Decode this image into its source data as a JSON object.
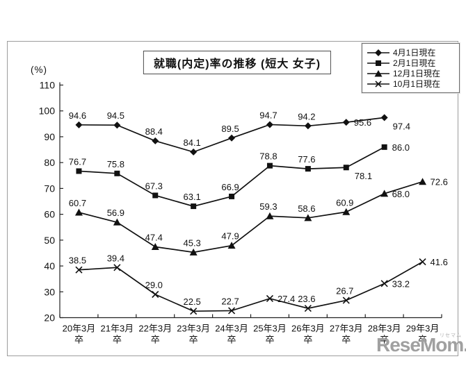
{
  "watermark": {
    "logo_text": "ReseMom.",
    "kana": "リセマム"
  },
  "chart_data": {
    "type": "line",
    "title": "就職(内定)率の推移 (短大 女子)",
    "y_axis": {
      "unit_label": "(%)",
      "min": 20,
      "max": 110,
      "tick_step": 10,
      "tick_labels": [
        "110",
        "100",
        "90",
        "80",
        "70",
        "60",
        "50",
        "40",
        "30",
        "20"
      ]
    },
    "categories": [
      "20年3月",
      "21年3月",
      "22年3月",
      "23年3月",
      "24年3月",
      "25年3月",
      "26年3月",
      "27年3月",
      "28年3月",
      "29年3月"
    ],
    "category_suffix": "卒",
    "grid": "off",
    "legend_position": "top-right",
    "line_color": "#111111",
    "axis_color": "#222222",
    "series": [
      {
        "name": "4月1日現在",
        "marker": "diamond",
        "values": [
          94.6,
          94.5,
          88.4,
          84.1,
          89.5,
          94.7,
          94.2,
          95.6,
          97.4,
          null
        ],
        "label_pos": [
          "a",
          "a",
          "a",
          "a",
          "a",
          "a",
          "a",
          "r",
          "br",
          null
        ]
      },
      {
        "name": "2月1日現在",
        "marker": "square",
        "values": [
          76.7,
          75.8,
          67.3,
          63.1,
          66.9,
          78.8,
          77.6,
          78.1,
          86.0,
          null
        ],
        "label_pos": [
          "a",
          "a",
          "a",
          "a",
          "a",
          "a",
          "a",
          "br",
          "r",
          null
        ]
      },
      {
        "name": "12月1日現在",
        "marker": "triangle",
        "values": [
          60.7,
          56.9,
          47.4,
          45.3,
          47.9,
          59.3,
          58.6,
          60.9,
          68.0,
          72.6
        ],
        "label_pos": [
          "a",
          "a",
          "a",
          "a",
          "a",
          "a",
          "a",
          "a",
          "r",
          "r"
        ]
      },
      {
        "name": "10月1日現在",
        "marker": "x",
        "values": [
          38.5,
          39.4,
          29.0,
          22.5,
          22.7,
          27.4,
          23.6,
          26.7,
          33.2,
          41.6
        ],
        "label_pos": [
          "a",
          "a",
          "a",
          "a",
          "a",
          "r",
          "a",
          "a",
          "r",
          "r"
        ]
      }
    ]
  }
}
